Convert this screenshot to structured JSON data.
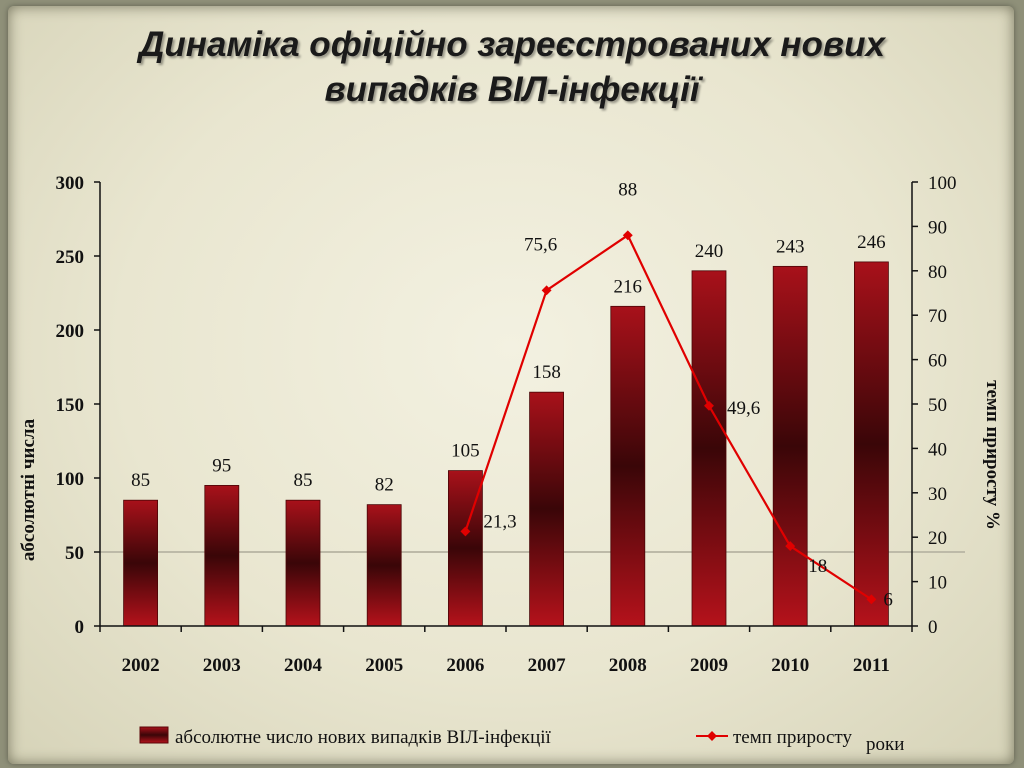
{
  "title_line1": "Динаміка офіційно зареєстрованих нових",
  "title_line2": "випадків ВІЛ-інфекції",
  "chart_data": {
    "type": "bar",
    "categories": [
      "2002",
      "2003",
      "2004",
      "2005",
      "2006",
      "2007",
      "2008",
      "2009",
      "2010",
      "2011"
    ],
    "series": [
      {
        "name": "абсолютне число нових випадків ВІЛ-інфекції",
        "type": "bar",
        "axis": "left",
        "values": [
          85,
          95,
          85,
          82,
          105,
          158,
          216,
          240,
          243,
          246
        ],
        "labels": [
          "85",
          "95",
          "85",
          "82",
          "105",
          "158",
          "216",
          "240",
          "243",
          "246"
        ],
        "color": "#8a0a10"
      },
      {
        "name": "темп приросту",
        "type": "line",
        "axis": "right",
        "values": [
          null,
          null,
          null,
          null,
          21.3,
          75.6,
          88,
          49.6,
          18,
          6
        ],
        "labels": [
          "",
          "",
          "",
          "",
          "21,3",
          "75,6",
          "88",
          "49,6",
          "18",
          "6"
        ],
        "color": "#e00000"
      }
    ],
    "ylabel": "абсолютні числа",
    "y2label": "темп приросту %",
    "xlabel": "роки",
    "ylim": [
      0,
      300
    ],
    "y2lim": [
      0,
      100
    ],
    "yticks": [
      "0",
      "50",
      "100",
      "150",
      "200",
      "250",
      "300"
    ],
    "y2ticks": [
      "0",
      "10",
      "20",
      "30",
      "40",
      "50",
      "60",
      "70",
      "80",
      "90",
      "100"
    ],
    "legend_position": "bottom"
  }
}
